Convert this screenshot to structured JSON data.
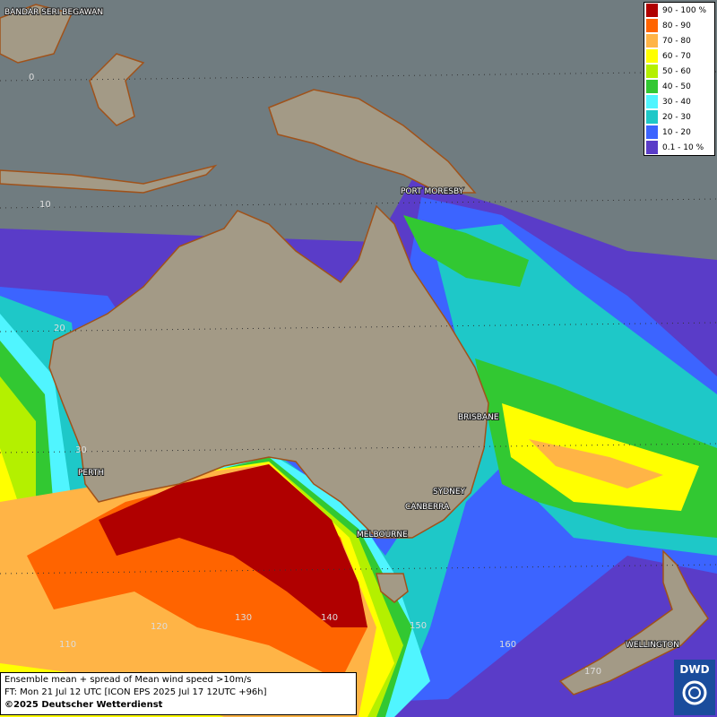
{
  "legend": {
    "items": [
      {
        "label": "90 - 100 %",
        "color": "#b00000"
      },
      {
        "label": "80 - 90",
        "color": "#ff6400"
      },
      {
        "label": "70 - 80",
        "color": "#ffb446"
      },
      {
        "label": "60 - 70",
        "color": "#ffff00"
      },
      {
        "label": "50 - 60",
        "color": "#b4f000"
      },
      {
        "label": "40 - 50",
        "color": "#32c832"
      },
      {
        "label": "30 - 40",
        "color": "#50f5ff"
      },
      {
        "label": "20 - 30",
        "color": "#1ec8c8"
      },
      {
        "label": "10 - 20",
        "color": "#3c64ff"
      },
      {
        "label": "0.1 - 10 %",
        "color": "#5a3cc8"
      }
    ]
  },
  "places": [
    {
      "label": "BANDAR SERI BEGAWAN"
    },
    {
      "label": "PORT MORESBY"
    },
    {
      "label": "BRISBANE"
    },
    {
      "label": "PERTH"
    },
    {
      "label": "SYDNEY"
    },
    {
      "label": "CANBERRA"
    },
    {
      "label": "MELBOURNE"
    },
    {
      "label": "WELLINGTON"
    }
  ],
  "grid_labels": [
    "0",
    "10",
    "20",
    "30",
    "110",
    "120",
    "130",
    "140",
    "150",
    "160",
    "170"
  ],
  "footer": {
    "line1": "Ensemble mean + spread of Mean wind speed >10m/s",
    "line2": "FT: Mon 21 Jul 12 UTC [ICON EPS 2025 Jul 17 12UTC +96h]",
    "line3": "©2025 Deutscher Wetterdienst"
  },
  "logo": "DWD"
}
